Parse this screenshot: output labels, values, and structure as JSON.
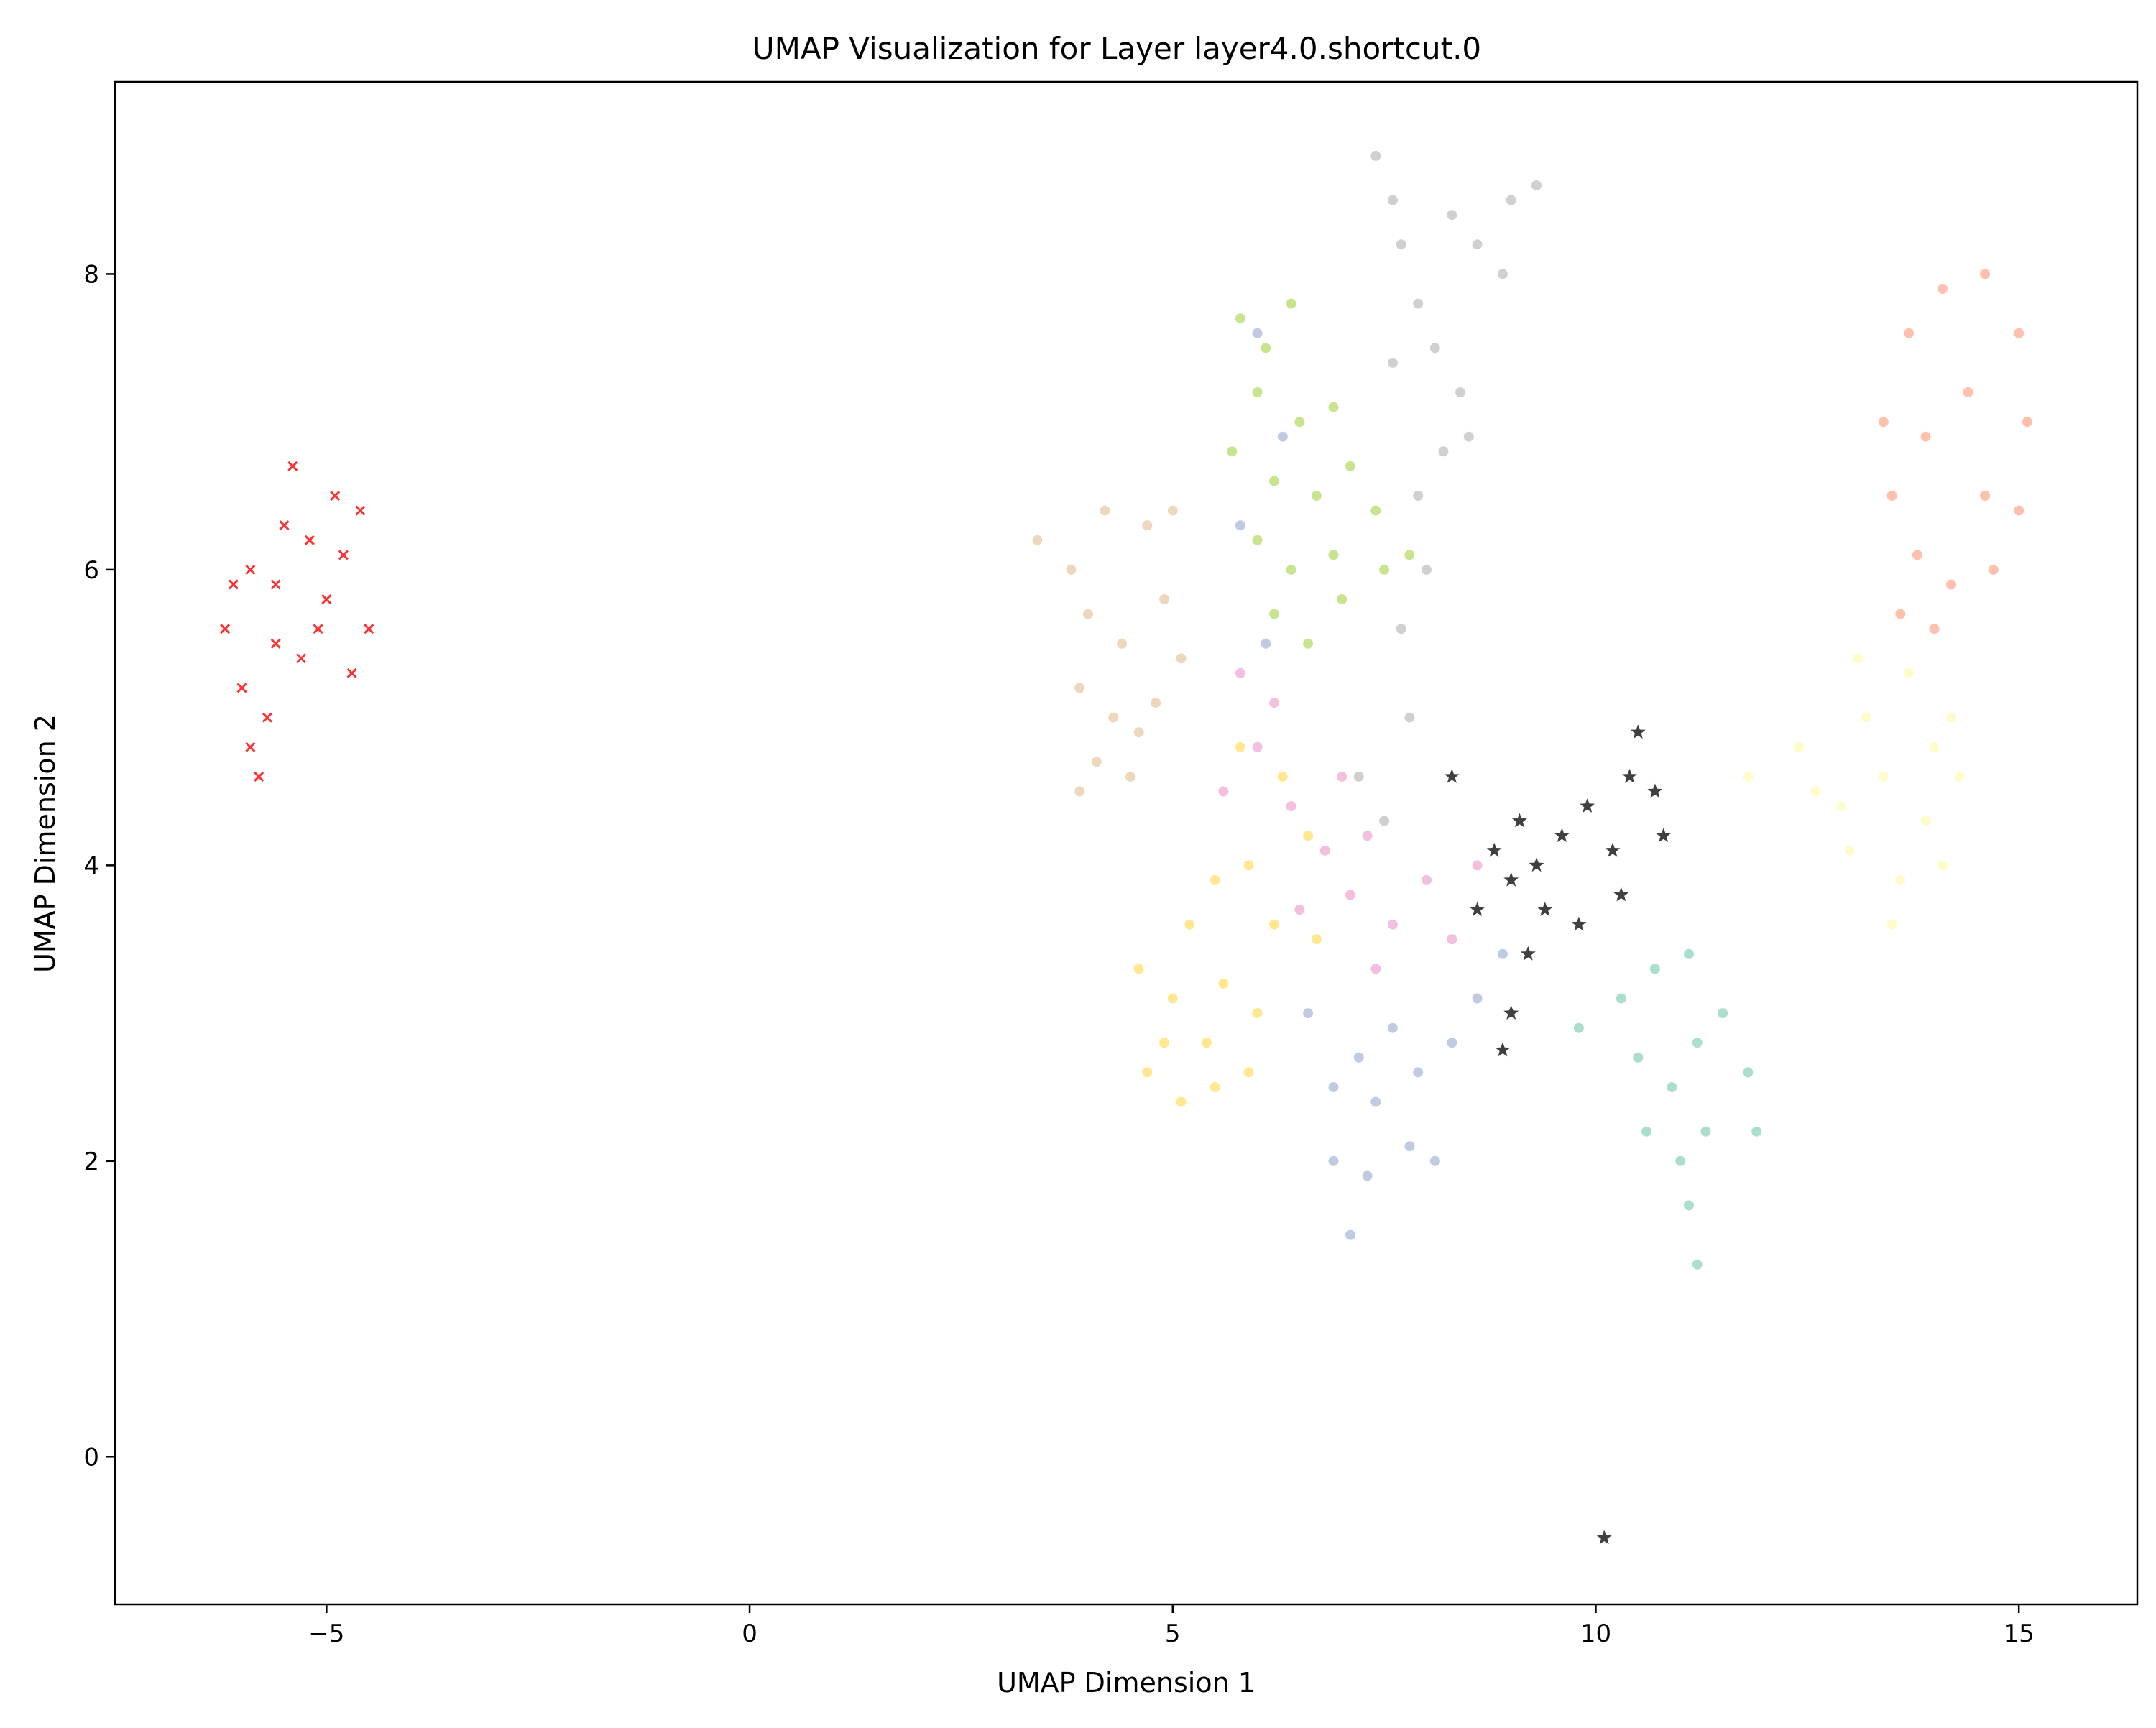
{
  "chart_data": {
    "type": "scatter",
    "title": "UMAP Visualization for Layer layer4.0.shortcut.0",
    "xlabel": "UMAP Dimension 1",
    "ylabel": "UMAP Dimension 2",
    "xlim": [
      -7.5,
      16.4
    ],
    "ylim": [
      -1.0,
      9.3
    ],
    "xticks": [
      -5,
      0,
      5,
      10,
      15
    ],
    "xtick_labels": [
      "−5",
      "0",
      "5",
      "10",
      "15"
    ],
    "yticks": [
      0,
      2,
      4,
      6,
      8
    ],
    "ytick_labels": [
      "0",
      "2",
      "4",
      "6",
      "8"
    ],
    "grid": false,
    "legend": "none",
    "series": [
      {
        "color": "#ff0000",
        "marker": "x",
        "points": [
          [
            -6.2,
            5.6
          ],
          [
            -6.0,
            5.2
          ],
          [
            -5.9,
            4.8
          ],
          [
            -5.8,
            4.6
          ],
          [
            -5.7,
            5.0
          ],
          [
            -5.6,
            5.5
          ],
          [
            -5.9,
            6.0
          ],
          [
            -5.5,
            6.3
          ],
          [
            -5.4,
            6.7
          ],
          [
            -5.2,
            6.2
          ],
          [
            -5.0,
            5.8
          ],
          [
            -4.8,
            6.1
          ],
          [
            -4.6,
            6.4
          ],
          [
            -4.5,
            5.6
          ],
          [
            -4.7,
            5.3
          ],
          [
            -5.3,
            5.4
          ],
          [
            -6.1,
            5.9
          ],
          [
            -5.6,
            5.9
          ],
          [
            -5.1,
            5.6
          ],
          [
            -4.9,
            6.5
          ]
        ]
      },
      {
        "color": "#deb887",
        "marker": "o",
        "points": [
          [
            3.4,
            6.2
          ],
          [
            3.8,
            6.0
          ],
          [
            4.2,
            6.4
          ],
          [
            4.7,
            6.3
          ],
          [
            5.0,
            6.4
          ],
          [
            4.0,
            5.7
          ],
          [
            4.4,
            5.5
          ],
          [
            4.9,
            5.8
          ],
          [
            3.9,
            5.2
          ],
          [
            4.3,
            5.0
          ],
          [
            4.8,
            5.1
          ],
          [
            4.1,
            4.7
          ],
          [
            4.5,
            4.6
          ],
          [
            3.9,
            4.5
          ],
          [
            5.1,
            5.4
          ],
          [
            4.6,
            4.9
          ]
        ]
      },
      {
        "color": "#9acd32",
        "marker": "o",
        "points": [
          [
            5.8,
            7.7
          ],
          [
            6.1,
            7.5
          ],
          [
            6.4,
            7.8
          ],
          [
            6.0,
            7.2
          ],
          [
            6.5,
            7.0
          ],
          [
            6.9,
            7.1
          ],
          [
            5.7,
            6.8
          ],
          [
            6.2,
            6.6
          ],
          [
            6.7,
            6.5
          ],
          [
            7.1,
            6.7
          ],
          [
            7.4,
            6.4
          ],
          [
            6.0,
            6.2
          ],
          [
            6.4,
            6.0
          ],
          [
            6.9,
            6.1
          ],
          [
            7.5,
            6.0
          ],
          [
            7.8,
            6.1
          ],
          [
            6.2,
            5.7
          ],
          [
            6.6,
            5.5
          ],
          [
            7.0,
            5.8
          ]
        ]
      },
      {
        "color": "#a9a9a9",
        "marker": "o",
        "points": [
          [
            7.4,
            8.8
          ],
          [
            7.6,
            8.5
          ],
          [
            7.7,
            8.2
          ],
          [
            8.3,
            8.4
          ],
          [
            8.6,
            8.2
          ],
          [
            9.0,
            8.5
          ],
          [
            9.3,
            8.6
          ],
          [
            8.9,
            8.0
          ],
          [
            7.9,
            7.8
          ],
          [
            7.6,
            7.4
          ],
          [
            8.1,
            7.5
          ],
          [
            8.4,
            7.2
          ],
          [
            8.2,
            6.8
          ],
          [
            7.9,
            6.5
          ],
          [
            8.5,
            6.9
          ],
          [
            8.0,
            6.0
          ],
          [
            7.7,
            5.6
          ],
          [
            7.8,
            5.0
          ],
          [
            7.5,
            4.3
          ],
          [
            7.2,
            4.6
          ]
        ]
      },
      {
        "color": "#ff8c69",
        "marker": "o",
        "points": [
          [
            13.4,
            7.0
          ],
          [
            13.7,
            7.6
          ],
          [
            14.1,
            7.9
          ],
          [
            14.6,
            8.0
          ],
          [
            15.0,
            7.6
          ],
          [
            15.1,
            7.0
          ],
          [
            15.0,
            6.4
          ],
          [
            14.7,
            6.0
          ],
          [
            14.2,
            5.9
          ],
          [
            13.8,
            6.1
          ],
          [
            13.5,
            6.5
          ],
          [
            13.9,
            6.9
          ],
          [
            14.4,
            7.2
          ],
          [
            14.6,
            6.5
          ],
          [
            13.6,
            5.7
          ],
          [
            14.0,
            5.6
          ]
        ]
      },
      {
        "color": "#fffaa0",
        "marker": "o",
        "points": [
          [
            11.8,
            4.6
          ],
          [
            12.4,
            4.8
          ],
          [
            12.9,
            4.4
          ],
          [
            13.2,
            5.0
          ],
          [
            13.7,
            5.3
          ],
          [
            14.2,
            5.0
          ],
          [
            13.4,
            4.6
          ],
          [
            13.9,
            4.3
          ],
          [
            14.3,
            4.6
          ],
          [
            13.0,
            4.1
          ],
          [
            13.6,
            3.9
          ],
          [
            14.1,
            4.0
          ],
          [
            13.5,
            3.6
          ],
          [
            12.6,
            4.5
          ],
          [
            13.1,
            5.4
          ],
          [
            14.0,
            4.8
          ]
        ]
      },
      {
        "color": "#ffd633",
        "marker": "o",
        "points": [
          [
            4.6,
            3.3
          ],
          [
            4.9,
            2.8
          ],
          [
            4.7,
            2.6
          ],
          [
            5.1,
            2.4
          ],
          [
            5.5,
            2.5
          ],
          [
            5.9,
            2.6
          ],
          [
            6.0,
            3.0
          ],
          [
            5.6,
            3.2
          ],
          [
            5.2,
            3.6
          ],
          [
            5.5,
            3.9
          ],
          [
            5.9,
            4.0
          ],
          [
            6.2,
            3.6
          ],
          [
            6.6,
            4.2
          ],
          [
            6.3,
            4.6
          ],
          [
            5.8,
            4.8
          ],
          [
            6.7,
            3.5
          ],
          [
            5.0,
            3.1
          ],
          [
            5.4,
            2.8
          ]
        ]
      },
      {
        "color": "#e78ac3",
        "marker": "o",
        "points": [
          [
            5.6,
            4.5
          ],
          [
            6.0,
            4.8
          ],
          [
            6.4,
            4.4
          ],
          [
            6.8,
            4.1
          ],
          [
            7.1,
            3.8
          ],
          [
            6.5,
            3.7
          ],
          [
            7.3,
            4.2
          ],
          [
            7.6,
            3.6
          ],
          [
            8.0,
            3.9
          ],
          [
            8.3,
            3.5
          ],
          [
            8.6,
            4.0
          ],
          [
            7.0,
            4.6
          ],
          [
            6.2,
            5.1
          ],
          [
            5.8,
            5.3
          ],
          [
            7.4,
            3.3
          ]
        ]
      },
      {
        "color": "#8da0cb",
        "marker": "o",
        "points": [
          [
            6.9,
            2.0
          ],
          [
            7.1,
            1.5
          ],
          [
            7.3,
            1.9
          ],
          [
            7.4,
            2.4
          ],
          [
            7.8,
            2.1
          ],
          [
            8.1,
            2.0
          ],
          [
            7.9,
            2.6
          ],
          [
            8.3,
            2.8
          ],
          [
            8.6,
            3.1
          ],
          [
            7.6,
            2.9
          ],
          [
            8.9,
            3.4
          ],
          [
            7.2,
            2.7
          ],
          [
            6.9,
            2.5
          ],
          [
            6.6,
            3.0
          ],
          [
            6.0,
            7.6
          ],
          [
            6.3,
            6.9
          ],
          [
            5.8,
            6.3
          ],
          [
            6.1,
            5.5
          ]
        ]
      },
      {
        "color": "#66c2a5",
        "marker": "o",
        "points": [
          [
            9.8,
            2.9
          ],
          [
            10.3,
            3.1
          ],
          [
            10.7,
            3.3
          ],
          [
            11.1,
            3.4
          ],
          [
            11.5,
            3.0
          ],
          [
            11.8,
            2.6
          ],
          [
            11.2,
            2.8
          ],
          [
            10.9,
            2.5
          ],
          [
            10.6,
            2.2
          ],
          [
            11.0,
            2.0
          ],
          [
            11.3,
            2.2
          ],
          [
            11.9,
            2.2
          ],
          [
            11.1,
            1.7
          ],
          [
            11.2,
            1.3
          ],
          [
            10.5,
            2.7
          ]
        ]
      },
      {
        "color": "#000000",
        "marker": "*",
        "points": [
          [
            8.6,
            3.7
          ],
          [
            8.8,
            4.1
          ],
          [
            9.0,
            3.9
          ],
          [
            9.1,
            4.3
          ],
          [
            9.3,
            4.0
          ],
          [
            9.4,
            3.7
          ],
          [
            9.2,
            3.4
          ],
          [
            9.6,
            4.2
          ],
          [
            9.9,
            4.4
          ],
          [
            10.2,
            4.1
          ],
          [
            10.4,
            4.6
          ],
          [
            10.5,
            4.9
          ],
          [
            10.7,
            4.5
          ],
          [
            10.8,
            4.2
          ],
          [
            10.3,
            3.8
          ],
          [
            9.8,
            3.6
          ],
          [
            9.0,
            3.0
          ],
          [
            8.9,
            2.75
          ],
          [
            10.1,
            -0.55
          ],
          [
            8.3,
            4.6
          ]
        ]
      }
    ]
  }
}
